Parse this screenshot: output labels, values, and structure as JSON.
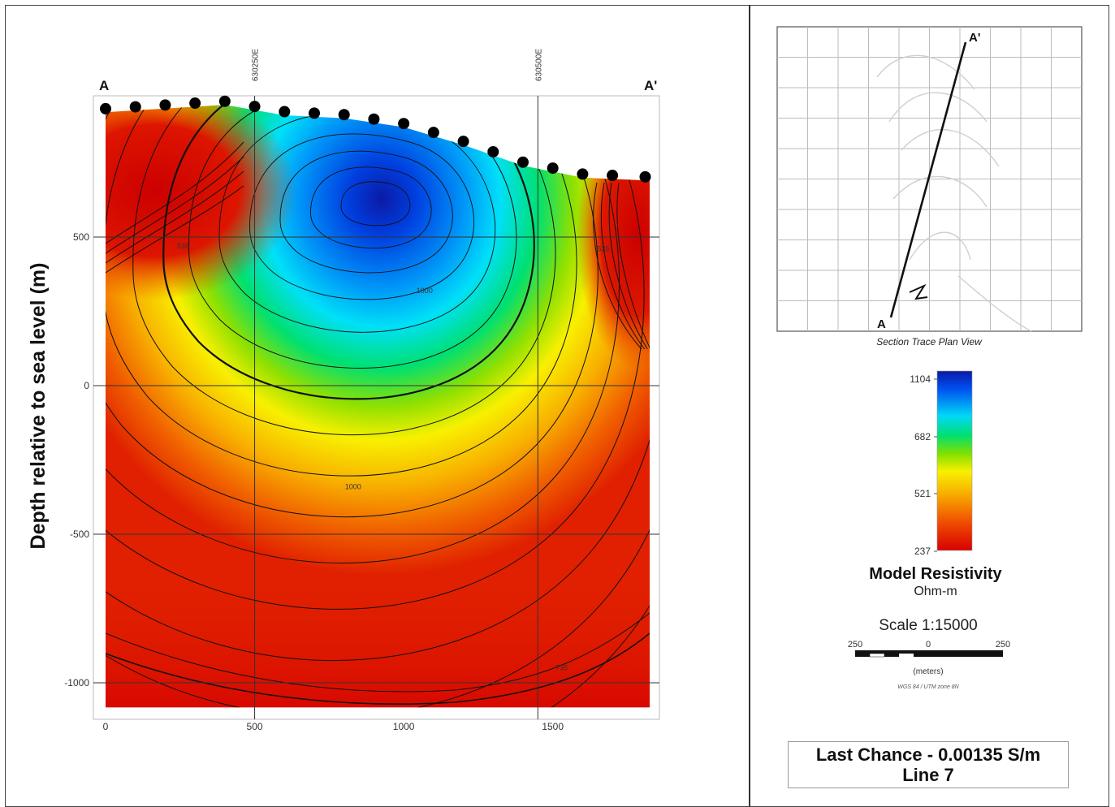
{
  "chart_data": {
    "type": "heatmap",
    "subtype": "resistivity cross-section with contours",
    "section_start_label": "A",
    "section_end_label": "A'",
    "ylabel": "Depth relative to sea level (m)",
    "xlabel": "",
    "xlim": [
      0,
      1825
    ],
    "ylim": [
      -1110,
      980
    ],
    "x_ticks": [
      0,
      500,
      1000,
      1500
    ],
    "y_ticks": [
      500,
      0,
      -500,
      -1000
    ],
    "easting_markers": [
      {
        "label": "630250E",
        "x": 500
      },
      {
        "label": "630500E",
        "x": 1450
      }
    ],
    "grid": true,
    "surface_profile": [
      [
        0,
        920
      ],
      [
        400,
        945
      ],
      [
        600,
        910
      ],
      [
        800,
        900
      ],
      [
        1000,
        870
      ],
      [
        1200,
        810
      ],
      [
        1400,
        740
      ],
      [
        1600,
        700
      ],
      [
        1825,
        690
      ]
    ],
    "stations_x": [
      0,
      100,
      200,
      300,
      400,
      500,
      600,
      700,
      800,
      900,
      1000,
      1100,
      1200,
      1300,
      1400,
      1500,
      1600,
      1700,
      1810
    ],
    "contour_labels": [
      {
        "text": "535",
        "x": 260,
        "y": 470
      },
      {
        "text": "1000",
        "x": 1070,
        "y": 320
      },
      {
        "text": "1000",
        "x": 830,
        "y": -340
      },
      {
        "text": "735",
        "x": 1530,
        "y": -950
      },
      {
        "text": "535",
        "x": 1670,
        "y": 460
      }
    ],
    "color_scale": {
      "title": "Model Resistivity",
      "units": "Ohm-m",
      "tick_labels": [
        "1104",
        "682",
        "521",
        "237"
      ],
      "colors": [
        "#0b1aa6",
        "#0050f0",
        "#00d8f8",
        "#00e070",
        "#80e000",
        "#f8f000",
        "#f8a800",
        "#f04000",
        "#d80000"
      ]
    }
  },
  "plan_view": {
    "caption": "Section Trace Plan View",
    "start_label": "A",
    "end_label": "A'"
  },
  "scale_bar": {
    "scale_text": "Scale 1:15000",
    "tick_left": "250",
    "tick_mid": "0",
    "tick_right": "250",
    "units": "(meters)",
    "projection": "WGS 84 / UTM zone 8N"
  },
  "title_box": {
    "line1": "Last Chance - 0.00135 S/m",
    "line2": "Line 7"
  }
}
